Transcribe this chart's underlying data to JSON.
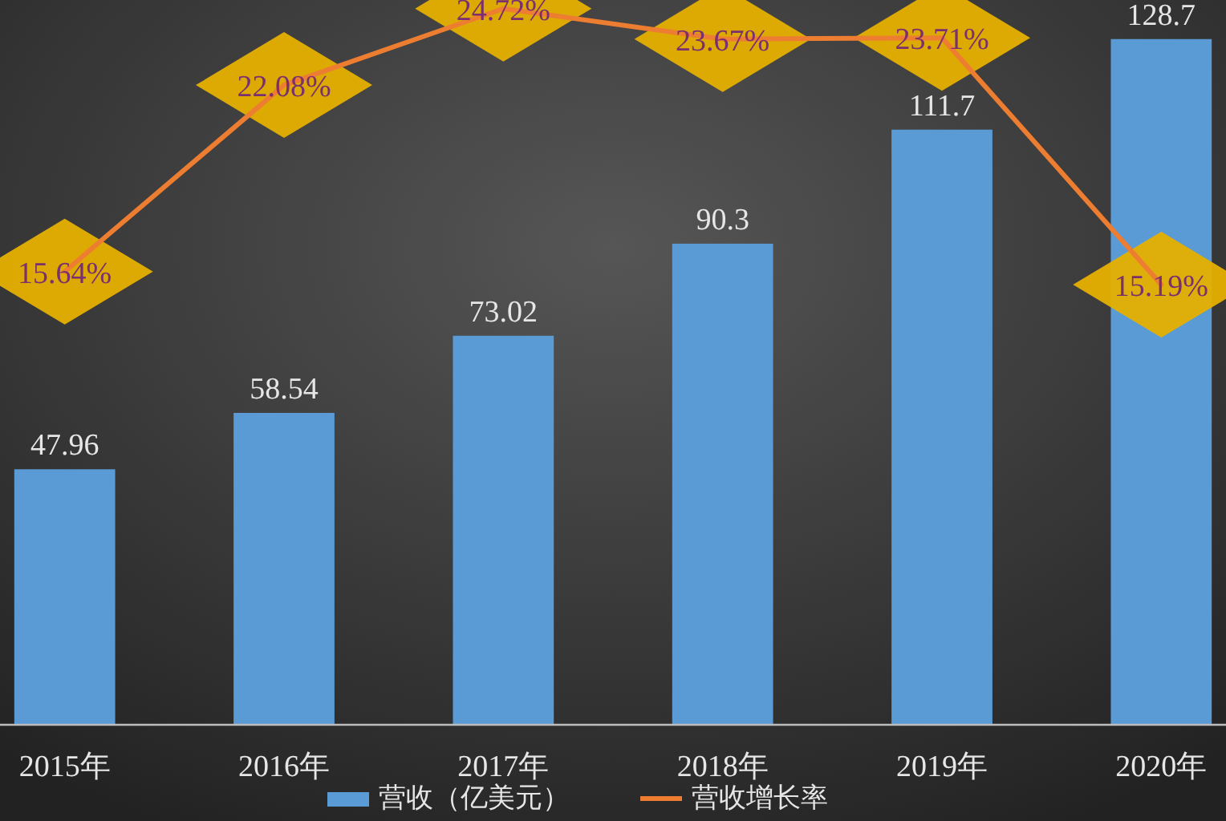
{
  "chart_data": {
    "type": "bar",
    "categories": [
      "2015年",
      "2016年",
      "2017年",
      "2018年",
      "2019年",
      "2020年"
    ],
    "series": [
      {
        "name": "营收（亿美元）",
        "color": "#5b9bd5",
        "values": [
          47.96,
          58.54,
          73.02,
          90.3,
          111.7,
          128.7
        ]
      },
      {
        "name": "营收增长率",
        "type": "line",
        "axis": "y2",
        "color": "#ed7d31",
        "values": [
          15.64,
          22.08,
          24.72,
          23.67,
          23.71,
          15.19
        ],
        "value_labels": [
          "15.64%",
          "22.08%",
          "24.72%",
          "23.67%",
          "23.71%",
          "15.19%"
        ]
      }
    ],
    "data_labels": true,
    "legend": "bottom"
  }
}
